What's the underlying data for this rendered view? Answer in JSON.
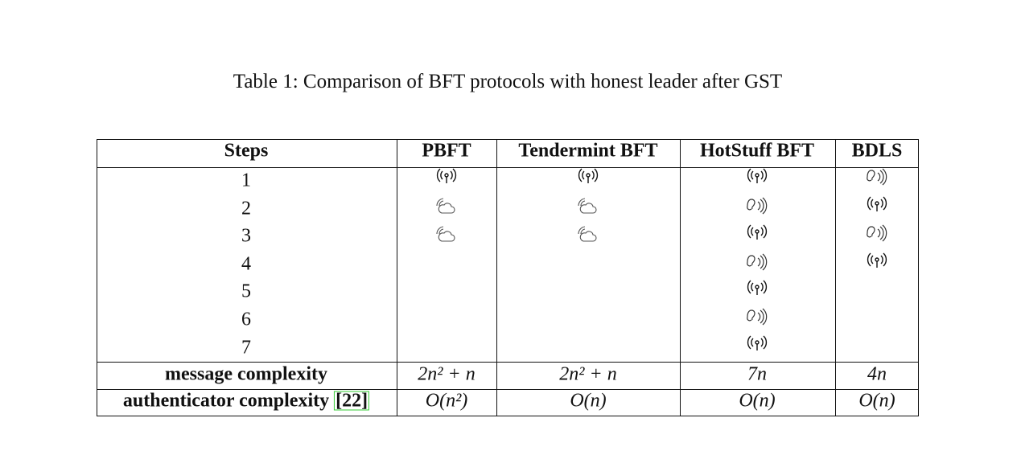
{
  "caption": "Table 1: Comparison of BFT protocols with honest leader after GST",
  "table": {
    "header": [
      "Steps",
      "PBFT",
      "Tendermint BFT",
      "HotStuff BFT",
      "BDLS"
    ],
    "steps": [
      "1",
      "2",
      "3",
      "4",
      "5",
      "6",
      "7"
    ],
    "rows": [
      [
        "message complexity",
        "2n² + n",
        "2n² + n",
        "7n",
        "4n"
      ],
      [
        "authenticator complexity",
        "O(n²)",
        "O(n)",
        "O(n)",
        "O(n)"
      ]
    ],
    "citation": "[22]"
  }
}
